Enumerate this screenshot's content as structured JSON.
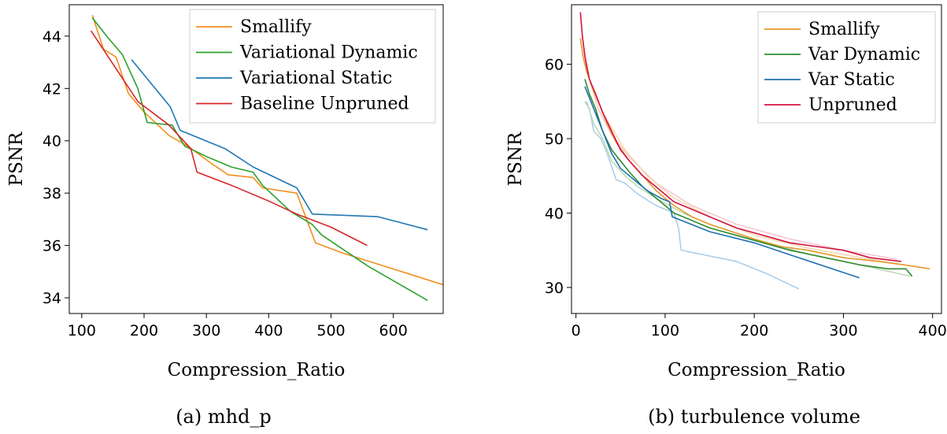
{
  "figure": {
    "captions": [
      "(a) mhd_p",
      "(b) turbulence volume"
    ]
  },
  "chart_data": [
    {
      "type": "line",
      "caption": "(a) mhd_p",
      "xlabel": "Compression_Ratio",
      "ylabel": "PSNR",
      "xlim": [
        80,
        680
      ],
      "ylim": [
        33.4,
        45.2
      ],
      "xticks": [
        100,
        200,
        300,
        400,
        500,
        600
      ],
      "yticks": [
        34,
        36,
        38,
        40,
        42,
        44
      ],
      "legend": "top-right",
      "series": [
        {
          "name": "Smallify",
          "color": "#f28e1c",
          "x": [
            117,
            135,
            155,
            175,
            200,
            240,
            270,
            310,
            335,
            375,
            390,
            445,
            475,
            520,
            600,
            680
          ],
          "y": [
            44.8,
            43.5,
            43.2,
            41.8,
            41.1,
            40.2,
            39.8,
            39.1,
            38.7,
            38.6,
            38.2,
            38.0,
            36.1,
            35.7,
            35.1,
            34.5
          ]
        },
        {
          "name": "Variational Dynamic",
          "color": "#2ca02c",
          "x": [
            117,
            140,
            165,
            190,
            205,
            245,
            265,
            300,
            340,
            375,
            390,
            435,
            470,
            485,
            560,
            655
          ],
          "y": [
            44.7,
            44.0,
            43.3,
            42.0,
            40.7,
            40.6,
            39.8,
            39.4,
            39.0,
            38.8,
            38.3,
            37.3,
            36.8,
            36.4,
            35.2,
            33.9
          ]
        },
        {
          "name": "Variational Static",
          "color": "#1f77b4",
          "x": [
            180,
            242,
            258,
            330,
            375,
            445,
            470,
            575,
            655
          ],
          "y": [
            43.1,
            41.3,
            40.4,
            39.7,
            39.0,
            38.2,
            37.2,
            37.1,
            36.6
          ]
        },
        {
          "name": "Baseline Unpruned",
          "color": "#d62728",
          "x": [
            115,
            190,
            240,
            275,
            285,
            340,
            400,
            445,
            500,
            558
          ],
          "y": [
            44.2,
            41.5,
            40.6,
            39.7,
            38.8,
            38.3,
            37.7,
            37.2,
            36.7,
            36.0
          ]
        }
      ]
    },
    {
      "type": "line",
      "caption": "(b) turbulence volume",
      "xlabel": "Compression_Ratio",
      "ylabel": "PSNR",
      "xlim": [
        -5,
        410
      ],
      "ylim": [
        26.5,
        68
      ],
      "xticks": [
        0,
        100,
        200,
        300,
        400
      ],
      "yticks": [
        30,
        40,
        50,
        60
      ],
      "legend": "top-right",
      "series": [
        {
          "name": "Smallify",
          "color": "#e39a2b",
          "x": [
            5,
            8,
            12,
            18,
            25,
            35,
            45,
            60,
            75,
            90,
            110,
            130,
            150,
            175,
            200,
            230,
            260,
            300,
            340,
            370,
            397
          ],
          "y": [
            63.5,
            61.0,
            59.0,
            57.0,
            55.0,
            52.0,
            49.5,
            47.0,
            45.0,
            43.0,
            41.0,
            39.5,
            38.5,
            37.5,
            36.5,
            35.5,
            35.0,
            34.0,
            33.5,
            33.0,
            32.5
          ]
        },
        {
          "name": "Var Dynamic",
          "color": "#2e8b2e",
          "x": [
            10,
            15,
            22,
            30,
            40,
            50,
            60,
            75,
            90,
            110,
            130,
            150,
            180,
            210,
            240,
            280,
            320,
            350,
            370,
            377
          ],
          "y": [
            58.0,
            56.0,
            54.0,
            51.0,
            48.5,
            47.0,
            45.5,
            43.5,
            42.0,
            40.0,
            39.0,
            38.0,
            37.0,
            36.0,
            35.0,
            34.0,
            33.0,
            32.5,
            32.5,
            31.5
          ]
        },
        {
          "name": "Var Static",
          "color": "#1f70b0",
          "x": [
            10,
            20,
            30,
            40,
            50,
            60,
            70,
            80,
            95,
            105,
            108,
            150,
            200,
            250,
            318
          ],
          "y": [
            57.0,
            54.0,
            51.0,
            48.0,
            46.0,
            45.0,
            44.0,
            43.0,
            42.0,
            41.5,
            39.5,
            37.5,
            36.0,
            34.0,
            31.3
          ]
        },
        {
          "name": "Unpruned",
          "color": "#d3133f",
          "x": [
            5,
            7,
            10,
            15,
            22,
            30,
            40,
            50,
            60,
            75,
            90,
            110,
            130,
            150,
            180,
            210,
            240,
            270,
            300,
            330,
            365
          ],
          "y": [
            67.0,
            64.0,
            61.0,
            58.0,
            56.0,
            53.5,
            51.0,
            48.5,
            47.0,
            45.0,
            43.5,
            41.5,
            40.5,
            39.5,
            38.0,
            37.0,
            36.0,
            35.5,
            35.0,
            34.0,
            33.5
          ]
        }
      ],
      "faint_series": [
        {
          "color": "#a9cbe6",
          "x": [
            10,
            15,
            20,
            28,
            35,
            45,
            55,
            70,
            90,
            110,
            115,
            118,
            180,
            215,
            250
          ],
          "y": [
            55.0,
            54.0,
            51.0,
            50.0,
            48.0,
            44.5,
            44.0,
            42.5,
            41.0,
            40.0,
            38.0,
            35.0,
            33.5,
            31.8,
            29.8
          ]
        },
        {
          "color": "#b6dbb0",
          "x": [
            12,
            20,
            30,
            40,
            55,
            70,
            90,
            120,
            150,
            200,
            260,
            320,
            375
          ],
          "y": [
            55.0,
            52.0,
            50.0,
            47.0,
            45.0,
            43.5,
            42.0,
            40.0,
            38.5,
            36.5,
            34.5,
            33.0,
            31.5
          ]
        },
        {
          "color": "#f4c5cc",
          "x": [
            8,
            15,
            25,
            40,
            60,
            90,
            130,
            180,
            240,
            300,
            360
          ],
          "y": [
            63.0,
            58.0,
            54.0,
            50.5,
            47.5,
            44.0,
            41.0,
            38.5,
            36.5,
            35.0,
            33.8
          ]
        },
        {
          "color": "#f3d7ab",
          "x": [
            10,
            20,
            35,
            55,
            80,
            110,
            150,
            200,
            260,
            320,
            380
          ],
          "y": [
            60.0,
            56.0,
            52.5,
            48.5,
            45.0,
            42.0,
            39.5,
            37.0,
            35.3,
            34.0,
            32.8
          ]
        }
      ]
    }
  ]
}
